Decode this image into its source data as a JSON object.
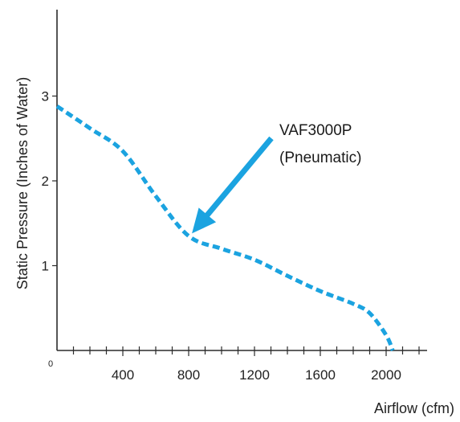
{
  "chart_data": {
    "type": "line",
    "title": "",
    "xlabel": "Airflow (cfm)",
    "ylabel": "Static Pressure (Inches of Water)",
    "xlim": [
      0,
      2200
    ],
    "ylim": [
      0,
      4
    ],
    "x_ticks": [
      400,
      800,
      1200,
      1600,
      2000
    ],
    "y_ticks": [
      1,
      2,
      3
    ],
    "origin_label": "0",
    "grid": false,
    "series": [
      {
        "name": "VAF3000P",
        "color": "#1ba3e0",
        "style": "dashed",
        "x": [
          0,
          200,
          400,
          600,
          800,
          1000,
          1200,
          1400,
          1600,
          1800,
          1900,
          2000,
          2040
        ],
        "y": [
          2.88,
          2.62,
          2.35,
          1.82,
          1.35,
          1.2,
          1.07,
          0.88,
          0.7,
          0.55,
          0.44,
          0.18,
          0.0
        ]
      }
    ],
    "annotation": {
      "line1": "VAF3000P",
      "line2": "(Pneumatic)",
      "arrow_color": "#1ba3e0",
      "points_to": {
        "x": 820,
        "y": 1.38
      }
    }
  }
}
